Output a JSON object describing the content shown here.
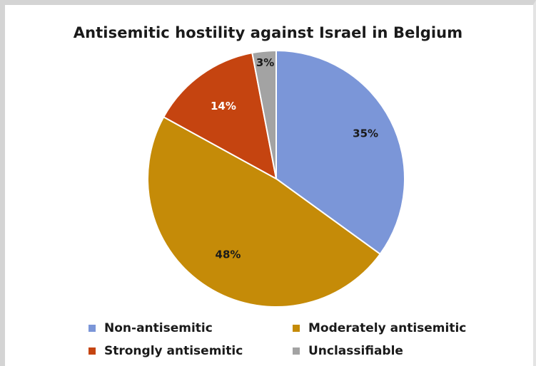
{
  "chart_data": {
    "type": "pie",
    "title": "Antisemitic hostility against Israel in Belgium",
    "slices": [
      {
        "label": "Non-antisemitic",
        "value": 35,
        "display": "35%",
        "color": "#7b96d8",
        "label_color": "#1a1a1a"
      },
      {
        "label": "Moderately antisemitic",
        "value": 48,
        "display": "48%",
        "color": "#c58b08",
        "label_color": "#1a1a1a"
      },
      {
        "label": "Strongly antisemitic",
        "value": 14,
        "display": "14%",
        "color": "#c54410",
        "label_color": "#ffffff"
      },
      {
        "label": "Unclassifiable",
        "value": 3,
        "display": "3%",
        "color": "#a3a3a3",
        "label_color": "#1a1a1a"
      }
    ],
    "legend_position": "bottom"
  }
}
